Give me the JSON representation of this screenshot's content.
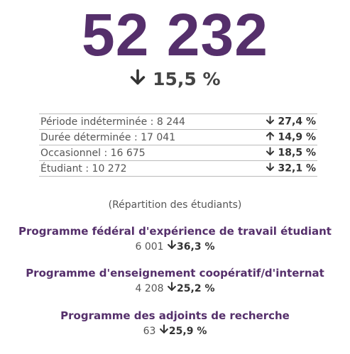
{
  "headline": {
    "value": "52 232",
    "change": "15,5 %",
    "trend": "down"
  },
  "table": {
    "rows": [
      [
        "Période indéterminée : 8 244",
        "27,4 %",
        "down"
      ],
      [
        "Durée déterminée : 17 041",
        "14,9 %",
        "up"
      ],
      [
        "Occasionnel : 16 675",
        "18,5 %",
        "down"
      ],
      [
        "Étudiant : 10 272",
        "32,1 %",
        "down"
      ]
    ]
  },
  "note": "(Répartition des étudiants)",
  "programs": [
    {
      "title": "Programme fédéral d'expérience de travail étudiant",
      "count": "6 001",
      "change": "36,3 %",
      "trend": "down"
    },
    {
      "title": "Programme d'enseignement coopératif/d'internat",
      "count": "4 208",
      "change": "25,2 %",
      "trend": "down"
    },
    {
      "title": "Programme des adjoints de recherche",
      "count": "63",
      "change": "25,9 %",
      "trend": "down"
    }
  ]
}
